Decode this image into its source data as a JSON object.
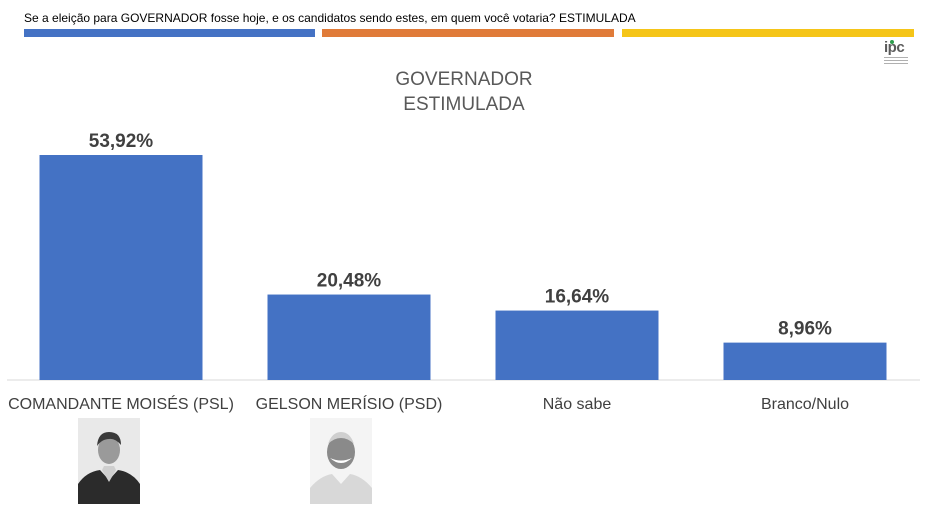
{
  "header": {
    "question": "Se a eleição para GOVERNADOR fosse hoje, e os candidatos sendo estes, em quem você votaria? ESTIMULADA",
    "stripe_colors": [
      "#4472c4",
      "#e07b39",
      "#f5c518"
    ]
  },
  "logo": {
    "text": "ipc",
    "icon": "ipc-logo-icon"
  },
  "chart_data": {
    "type": "bar",
    "title": "GOVERNADOR",
    "subtitle": "ESTIMULADA",
    "categories": [
      "COMANDANTE MOISÉS (PSL)",
      "GELSON MERÍSIO (PSD)",
      "Não sabe",
      "Branco/Nulo"
    ],
    "values": [
      53.92,
      20.48,
      16.64,
      8.96
    ],
    "value_labels": [
      "53,92%",
      "20,48%",
      "16,64%",
      "8,96%"
    ],
    "unit": "%",
    "ylim": [
      0,
      60
    ],
    "grid": false,
    "legend": "none",
    "bar_color": "#4472c4"
  },
  "photos": [
    {
      "icon": "candidate-photo-icon"
    },
    {
      "icon": "candidate-photo-icon"
    }
  ]
}
